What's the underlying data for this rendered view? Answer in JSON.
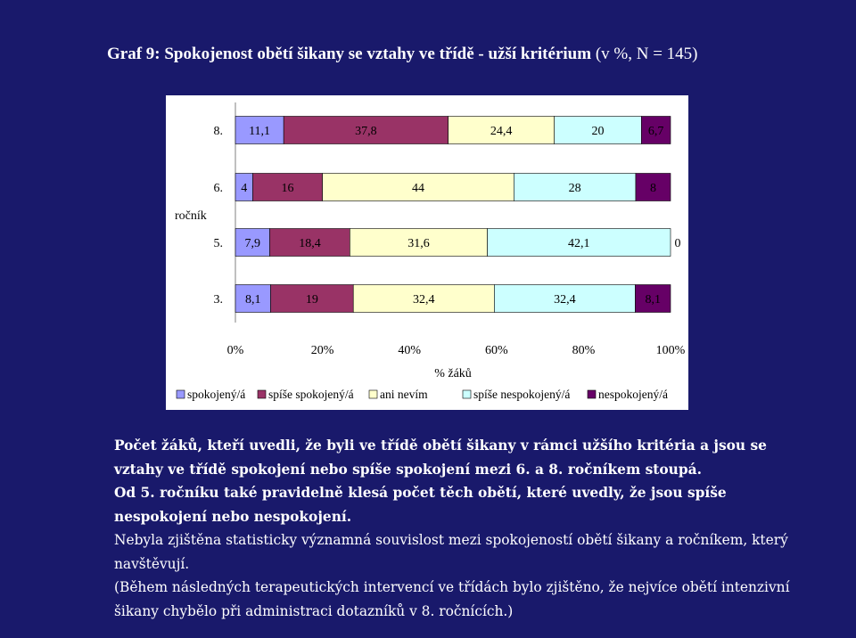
{
  "title_bold": "Graf 9: Spokojenost obětí šikany se vztahy ve třídě - užší kritérium",
  "title_rest": " (v %, N = 145)",
  "chart_data": {
    "type": "bar",
    "orientation": "horizontal",
    "stacked": "percent",
    "categories": [
      "8.",
      "6.",
      "5.",
      "3."
    ],
    "series": [
      {
        "name": "spokojený/á",
        "color": "#9999ff",
        "values": [
          11.1,
          4,
          7.9,
          8.1
        ]
      },
      {
        "name": "spíše spokojený/á",
        "color": "#993366",
        "values": [
          37.8,
          16,
          18.4,
          19
        ]
      },
      {
        "name": "ani nevím",
        "color": "#ffffcc",
        "values": [
          24.4,
          44,
          31.6,
          32.4
        ]
      },
      {
        "name": "spíše nespokojený/á",
        "color": "#ccffff",
        "values": [
          20,
          28,
          42.1,
          32.4
        ]
      },
      {
        "name": "nespokojený/á",
        "color": "#660066",
        "values": [
          6.7,
          8,
          0,
          8.1
        ]
      }
    ],
    "labels": [
      [
        "11,1",
        "37,8",
        "24,4",
        "20",
        "6,7"
      ],
      [
        "4",
        "16",
        "44",
        "28",
        "8"
      ],
      [
        "7,9",
        "18,4",
        "31,6",
        "42,1",
        "0"
      ],
      [
        "8,1",
        "19",
        "32,4",
        "32,4",
        "8,1"
      ]
    ],
    "xticks": [
      "0%",
      "20%",
      "40%",
      "60%",
      "80%",
      "100%"
    ],
    "xlabel": "% žáků",
    "ylabel": "ročník",
    "xlim": [
      0,
      100
    ],
    "grid": false,
    "legend": "bottom"
  },
  "paragraphs": [
    {
      "style": "bold",
      "indent": true,
      "text": "Počet žáků, kteří uvedli, že byli ve třídě obětí šikany v rámci užšího kritéria a jsou se vztahy ve třídě spokojení nebo spíše spokojení mezi 6. a 8. ročníkem stoupá."
    },
    {
      "style": "bold",
      "indent": true,
      "text": "Od 5. ročníku také pravidelně klesá počet těch obětí, které uvedly, že jsou spíše nespokojení nebo nespokojení."
    },
    {
      "style": "norm",
      "indent": true,
      "text": "Nebyla zjištěna statisticky významná souvislost mezi spokojeností obětí šikany a ročníkem, který navštěvují."
    },
    {
      "style": "norm",
      "indent": true,
      "text": "(Během následných terapeutických intervencí ve třídách bylo zjištěno, že nejvíce obětí intenzivní šikany chybělo při administraci dotazníků v 8. ročnících.)"
    }
  ]
}
